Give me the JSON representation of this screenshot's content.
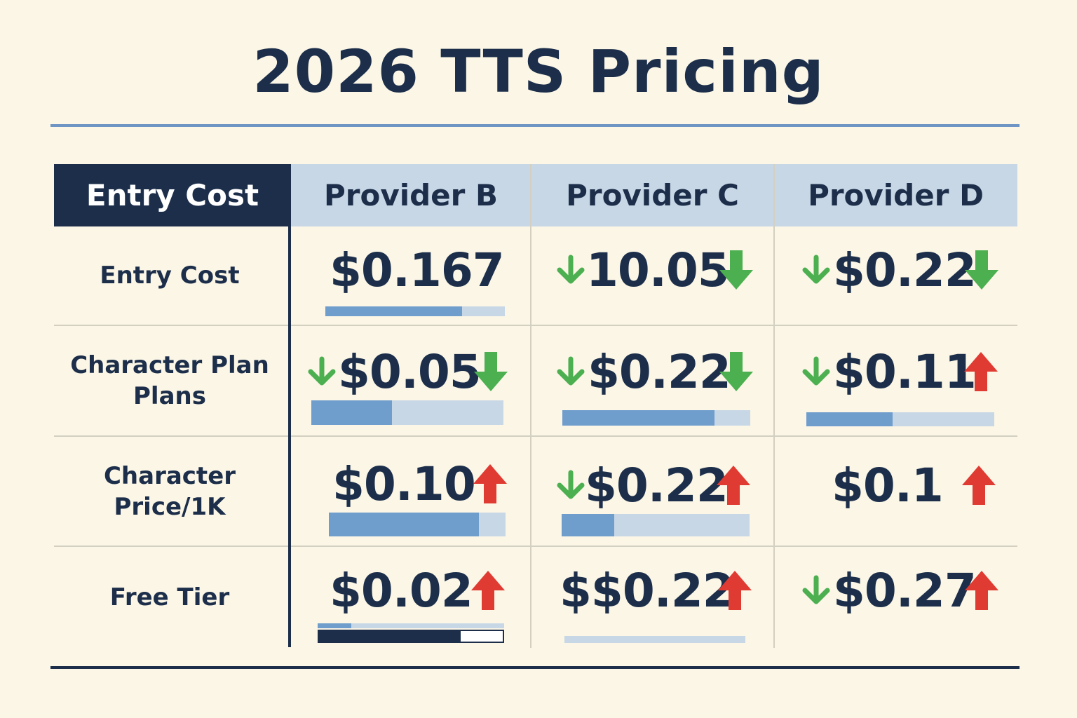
{
  "title": "2026 TTS Pricing",
  "colors": {
    "navy": "#1c2e4a",
    "header_band": "#c8d7e6",
    "bar_fill": "#6f9dcc",
    "arrow_down": "#4caf50",
    "arrow_up": "#e03b32",
    "background": "#fbf6e6"
  },
  "chart_data": {
    "type": "table",
    "corner_header": "Entry Cost",
    "columns": [
      "Provider B",
      "Provider C",
      "Provider D"
    ],
    "rows": [
      {
        "label": "Entry Cost",
        "cells": [
          {
            "value": "$0.167",
            "lead_arrow": "none",
            "trail_arrow": "none",
            "bar": 0.76
          },
          {
            "value": "10.05",
            "lead_arrow": "down",
            "trail_arrow": "down",
            "bar": null
          },
          {
            "value": "$0.22",
            "lead_arrow": "down",
            "trail_arrow": "down",
            "bar": null
          }
        ]
      },
      {
        "label": "Character Plan Plans",
        "cells": [
          {
            "value": "$0.05",
            "lead_arrow": "down",
            "trail_arrow": "down",
            "bar": 0.42
          },
          {
            "value": "$0.22",
            "lead_arrow": "down",
            "trail_arrow": "down",
            "bar": 0.81
          },
          {
            "value": "$0.11",
            "lead_arrow": "down",
            "trail_arrow": "up",
            "bar": 0.46
          }
        ]
      },
      {
        "label": "Character Price/1K",
        "cells": [
          {
            "value": "$0.10",
            "lead_arrow": "none",
            "trail_arrow": "up",
            "bar": 0.85
          },
          {
            "value": "$0.22",
            "lead_arrow": "down",
            "trail_arrow": "up",
            "bar": 0.28
          },
          {
            "value": "$0.1",
            "lead_arrow": "none",
            "trail_arrow": "up",
            "bar": null
          }
        ]
      },
      {
        "label": "Free Tier",
        "cells": [
          {
            "value": "$0.02",
            "lead_arrow": "none",
            "trail_arrow": "up",
            "bar": 0.77
          },
          {
            "value": "$$0.22",
            "lead_arrow": "none",
            "trail_arrow": "up",
            "bar": 0
          },
          {
            "value": "$0.27",
            "lead_arrow": "down",
            "trail_arrow": "up",
            "bar": null
          }
        ]
      }
    ]
  }
}
